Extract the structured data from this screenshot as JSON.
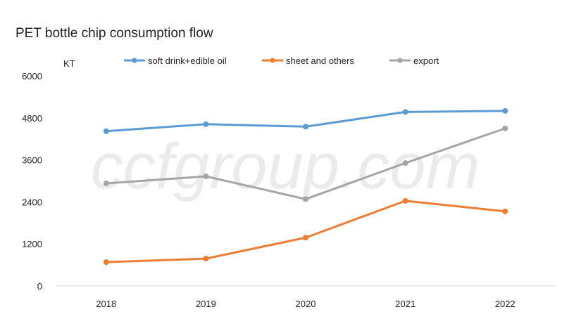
{
  "chart_data": {
    "type": "line",
    "title": "PET bottle chip consumption flow",
    "ylabel": "KT",
    "xlabel": "",
    "categories": [
      "2018",
      "2019",
      "2020",
      "2021",
      "2022"
    ],
    "ylim": [
      0,
      6000
    ],
    "yticks": [
      0,
      1200,
      2400,
      3600,
      4800,
      6000
    ],
    "grid": false,
    "legend_position": "top",
    "watermark": "ccfgroup.com",
    "series": [
      {
        "name": "soft drink+edible oil",
        "color": "#5b9bd5",
        "values": [
          4420,
          4620,
          4550,
          4970,
          5000
        ]
      },
      {
        "name": "sheet and others",
        "color": "#ed7d31",
        "values": [
          680,
          780,
          1380,
          2430,
          2130
        ]
      },
      {
        "name": "export",
        "color": "#a5a5a5",
        "values": [
          2930,
          3130,
          2480,
          3510,
          4500
        ]
      }
    ]
  }
}
